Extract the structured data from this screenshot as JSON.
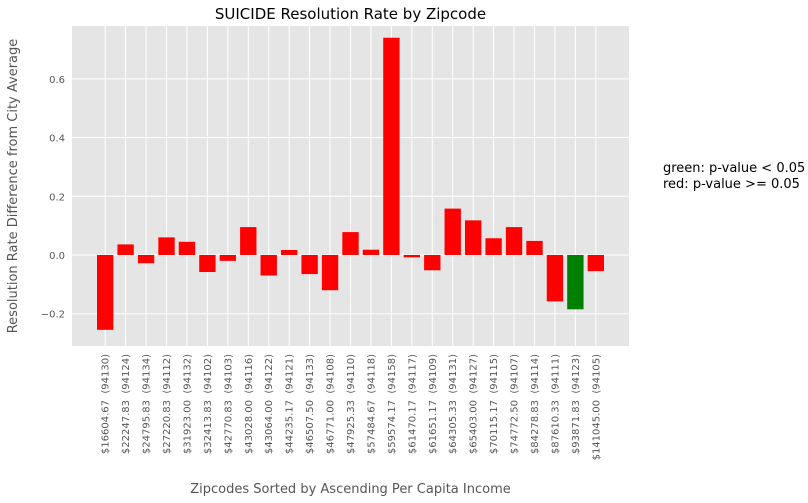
{
  "chart_data": {
    "type": "bar",
    "title": "SUICIDE Resolution Rate by Zipcode",
    "xlabel": "Zipcodes Sorted by Ascending Per Capita Income",
    "ylabel": "Resolution Rate Difference from City Average",
    "ylim": [
      -0.31,
      0.78
    ],
    "yticks": [
      -0.2,
      0.0,
      0.2,
      0.4,
      0.6
    ],
    "ytick_labels": [
      "−0.2",
      "0.0",
      "0.2",
      "0.4",
      "0.6"
    ],
    "grid": true,
    "categories": [
      "$16604.67  (94130)",
      "$22247.83  (94124)",
      "$24795.83  (94134)",
      "$27220.83  (94112)",
      "$31923.00  (94132)",
      "$32413.83  (94102)",
      "$42770.83  (94103)",
      "$43028.00  (94116)",
      "$43064.00  (94122)",
      "$44235.17  (94121)",
      "$46507.50  (94133)",
      "$46771.00  (94108)",
      "$47925.33  (94110)",
      "$57484.67  (94118)",
      "$59574.17  (94158)",
      "$61470.17  (94117)",
      "$61651.17  (94109)",
      "$64305.33  (94131)",
      "$65403.00  (94127)",
      "$70115.17  (94115)",
      "$74772.50  (94107)",
      "$84278.83  (94114)",
      "$87610.33  (94111)",
      "$93871.83  (94123)",
      "$141045.00  (94105)"
    ],
    "values": [
      -0.255,
      0.036,
      -0.028,
      0.06,
      0.045,
      -0.058,
      -0.02,
      0.095,
      -0.07,
      0.017,
      -0.065,
      -0.12,
      0.078,
      0.018,
      0.74,
      -0.008,
      -0.052,
      0.158,
      0.118,
      0.057,
      0.095,
      0.048,
      -0.158,
      -0.185,
      -0.055
    ],
    "significant": [
      false,
      false,
      false,
      false,
      false,
      false,
      false,
      false,
      false,
      false,
      false,
      false,
      false,
      false,
      false,
      false,
      false,
      false,
      false,
      false,
      false,
      false,
      false,
      true,
      false
    ],
    "colors": {
      "significant": "#008000",
      "not_significant": "#ff0000",
      "plot_bg": "#e5e5e5",
      "grid": "#ffffff",
      "text": "#555555"
    }
  },
  "annotation": {
    "line1": "green: p-value < 0.05",
    "line2": "red: p-value >= 0.05"
  }
}
